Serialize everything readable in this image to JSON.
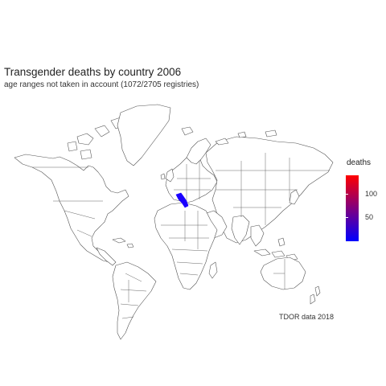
{
  "title": "Transgender deaths by country 2006",
  "subtitle": "age ranges not taken in account (1072/2705 registries)",
  "caption": "TDOR data 2018",
  "legend": {
    "title": "deaths",
    "ticks": [
      "100",
      "50"
    ],
    "tick_values": [
      100,
      50
    ],
    "range": [
      1,
      165
    ],
    "high_color": "#ff0000",
    "low_color": "#0000ff"
  },
  "highlighted_country": {
    "fill": "#1a00ff"
  },
  "land_color": "#ffffff",
  "border_color": "#555555"
}
